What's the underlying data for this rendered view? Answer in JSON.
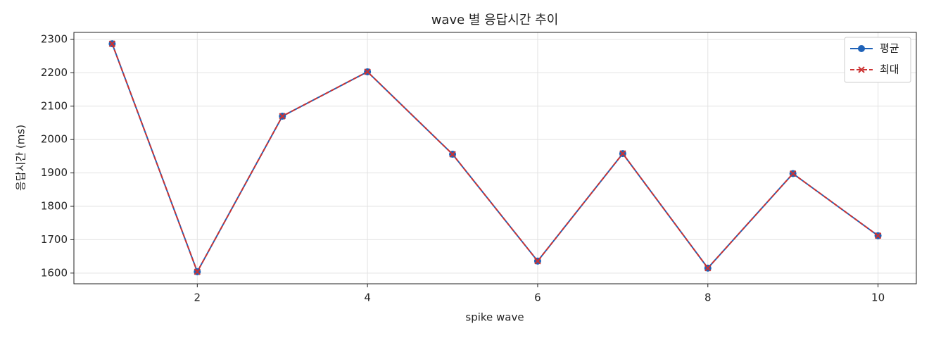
{
  "chart_data": {
    "type": "line",
    "title": "wave 별 응답시간 추이",
    "x_label": "spike wave",
    "y_label": "응답시간 (ms)",
    "x": [
      1,
      2,
      3,
      4,
      5,
      6,
      7,
      8,
      9,
      10
    ],
    "series": [
      {
        "name": "평균",
        "color": "#1f62b8",
        "marker": "circle",
        "linestyle": "solid",
        "values": [
          2287,
          1604,
          2070,
          2203,
          1956,
          1636,
          1958,
          1615,
          1898,
          1712
        ]
      },
      {
        "name": "최대",
        "color": "#cc3333",
        "marker": "x",
        "linestyle": "dashed",
        "values": [
          2287,
          1604,
          2070,
          2203,
          1956,
          1636,
          1958,
          1615,
          1898,
          1712
        ]
      }
    ],
    "xlim": [
      0.55,
      10.45
    ],
    "ylim": [
      1568,
      2321
    ],
    "xticks": [
      2,
      4,
      6,
      8,
      10
    ],
    "yticks": [
      1600,
      1700,
      1800,
      1900,
      2000,
      2100,
      2200,
      2300
    ],
    "grid": true,
    "legend": "upper right"
  }
}
